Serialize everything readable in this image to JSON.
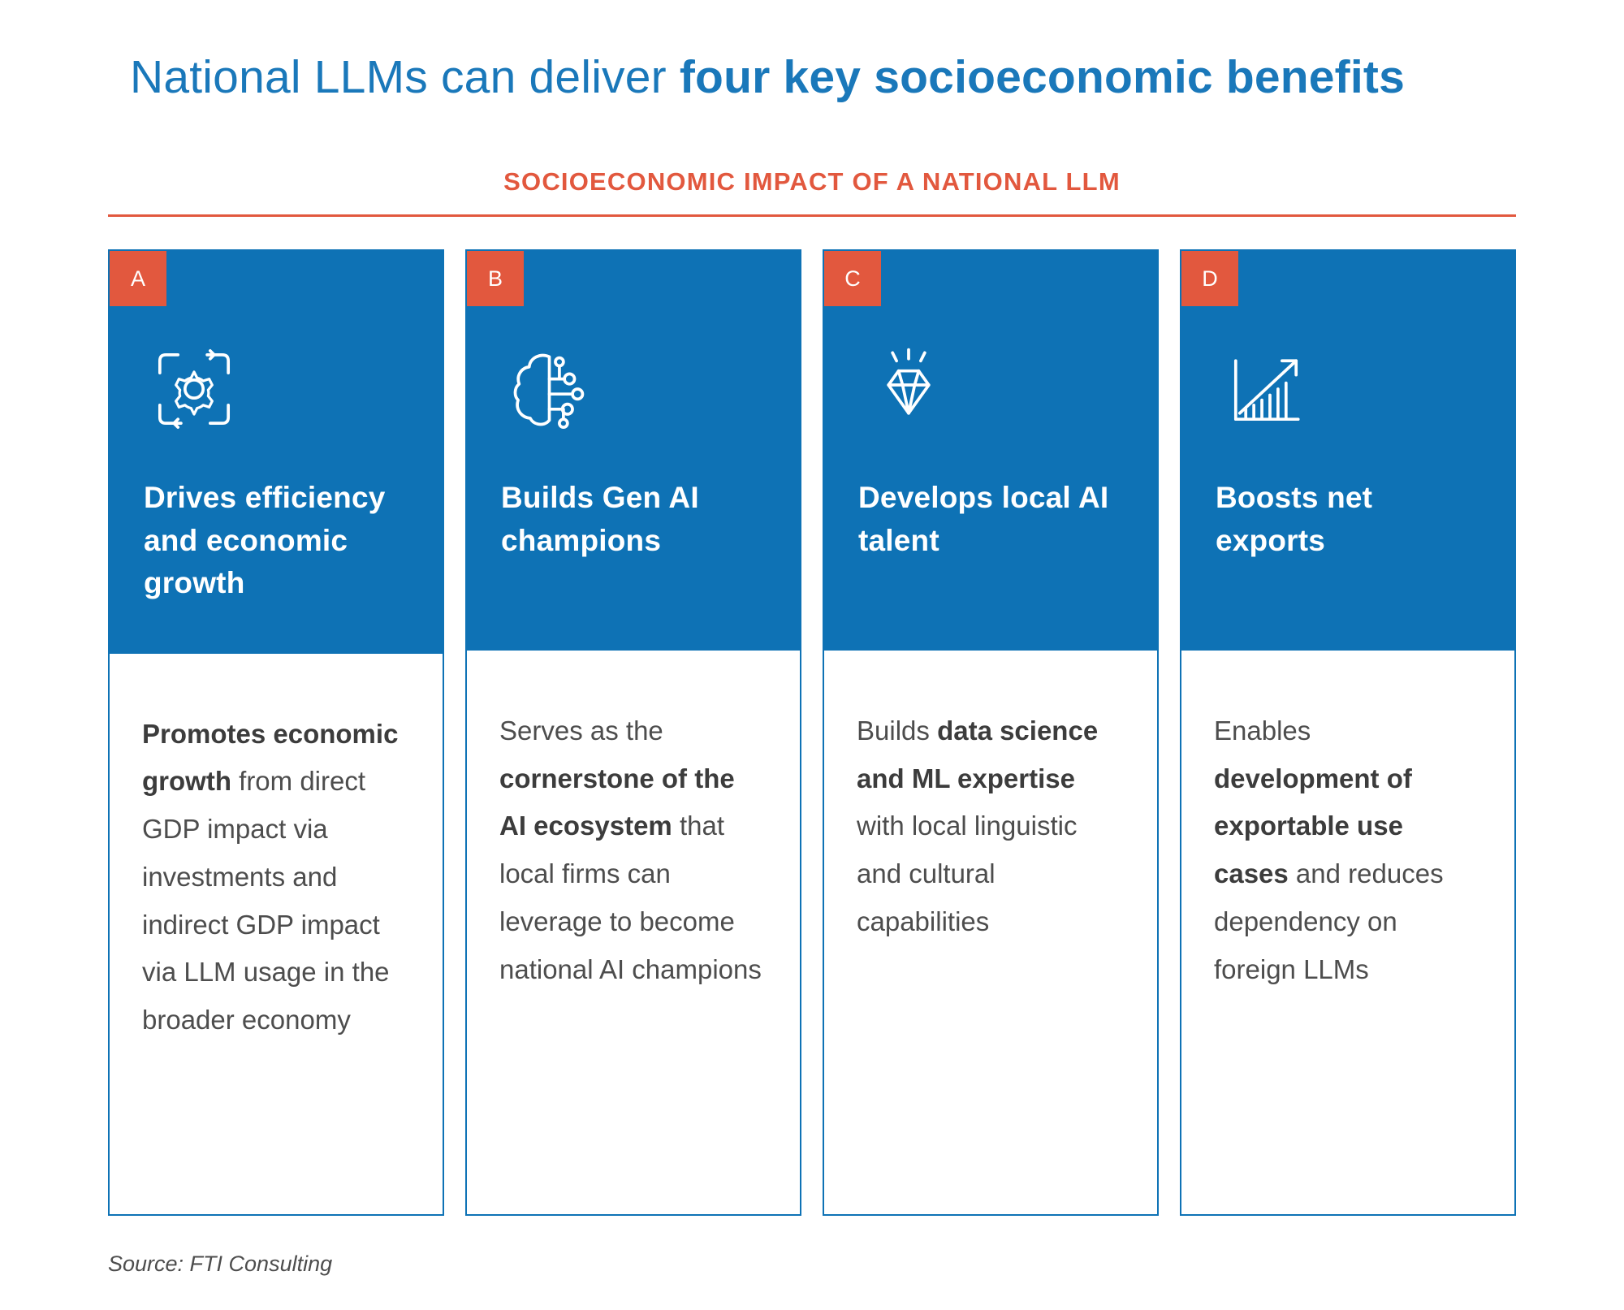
{
  "page": {
    "title_regular": "National LLMs can deliver ",
    "title_bold": "four key socioeconomic benefits",
    "subtitle": "SOCIOECONOMIC IMPACT OF A NATIONAL LLM",
    "source": "Source: FTI Consulting"
  },
  "colors": {
    "header_blue": "#0e72b5",
    "title_blue": "#1a78ba",
    "accent_orange": "#e2583e",
    "body_text": "#4d4d4d"
  },
  "cards": [
    {
      "letter": "A",
      "icon": "process-gear-icon",
      "title": "Drives efficiency and economic growth",
      "body": [
        {
          "text": "Promotes economic growth",
          "bold": true
        },
        {
          "text": " from direct GDP impact via investments and indirect GDP impact via LLM usage in the broader economy",
          "bold": false
        }
      ]
    },
    {
      "letter": "B",
      "icon": "ai-brain-icon",
      "title": "Builds Gen AI champions",
      "body": [
        {
          "text": "Serves as the ",
          "bold": false
        },
        {
          "text": "cornerstone of the AI ecosystem",
          "bold": true
        },
        {
          "text": " that local firms can leverage to become national AI champions",
          "bold": false
        }
      ]
    },
    {
      "letter": "C",
      "icon": "diamond-icon",
      "title": "Develops local AI talent",
      "body": [
        {
          "text": "Builds ",
          "bold": false
        },
        {
          "text": "data science and ML expertise",
          "bold": true
        },
        {
          "text": " with local linguistic and cultural capabilities",
          "bold": false
        }
      ]
    },
    {
      "letter": "D",
      "icon": "growth-chart-icon",
      "title": "Boosts net exports",
      "body": [
        {
          "text": "Enables ",
          "bold": false
        },
        {
          "text": "development of exportable use cases",
          "bold": true
        },
        {
          "text": " and reduces dependency on foreign LLMs",
          "bold": false
        }
      ]
    }
  ]
}
